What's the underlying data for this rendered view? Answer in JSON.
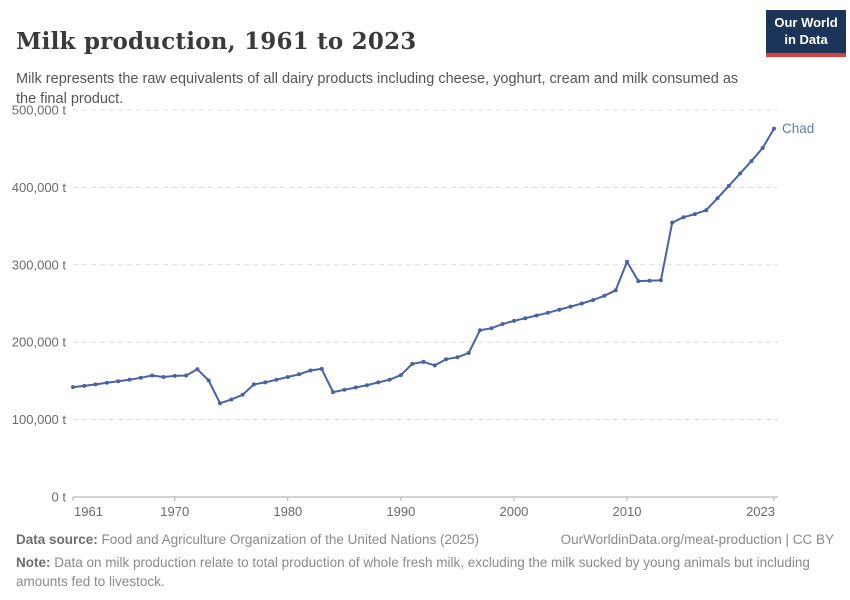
{
  "header": {
    "title": "Milk production, 1961 to 2023",
    "subtitle": "Milk represents the raw equivalents of all dairy products including cheese, yoghurt, cream and milk consumed as the final product.",
    "logo": {
      "line1": "Our World",
      "line2": "in Data"
    }
  },
  "chart_data": {
    "type": "line",
    "title": "Milk production, 1961 to 2023",
    "unit": "t",
    "entity_label": "Chad",
    "line_color": "#4862a4",
    "entity_label_color": "#5d7ab8",
    "grid": "horizontal dashed",
    "legend_position": "end-of-line label",
    "ylim": [
      0,
      500000
    ],
    "yticks": [
      {
        "value": 0,
        "label": "0 t"
      },
      {
        "value": 100000,
        "label": "100,000 t"
      },
      {
        "value": 200000,
        "label": "200,000 t"
      },
      {
        "value": 300000,
        "label": "300,000 t"
      },
      {
        "value": 400000,
        "label": "400,000 t"
      },
      {
        "value": 500000,
        "label": "500,000 t"
      }
    ],
    "xticks": [
      1961,
      1970,
      1980,
      1990,
      2000,
      2010,
      2023
    ],
    "x": [
      1961,
      1962,
      1963,
      1964,
      1965,
      1966,
      1967,
      1968,
      1969,
      1970,
      1971,
      1972,
      1973,
      1974,
      1975,
      1976,
      1977,
      1978,
      1979,
      1980,
      1981,
      1982,
      1983,
      1984,
      1985,
      1986,
      1987,
      1988,
      1989,
      1990,
      1991,
      1992,
      1993,
      1994,
      1995,
      1996,
      1997,
      1998,
      1999,
      2000,
      2001,
      2002,
      2003,
      2004,
      2005,
      2006,
      2007,
      2008,
      2009,
      2010,
      2011,
      2012,
      2013,
      2014,
      2015,
      2016,
      2017,
      2018,
      2019,
      2020,
      2021,
      2022,
      2023
    ],
    "series": [
      {
        "name": "Chad",
        "values": [
          142000,
          143500,
          145500,
          147500,
          149500,
          151500,
          154000,
          157000,
          155000,
          156500,
          157000,
          165000,
          150500,
          121000,
          126000,
          132000,
          145500,
          148000,
          151500,
          155000,
          158500,
          163500,
          165500,
          135500,
          138500,
          141500,
          144500,
          148000,
          151500,
          157500,
          172000,
          174500,
          170000,
          178000,
          180500,
          186000,
          215500,
          218000,
          223500,
          227500,
          231000,
          234500,
          238000,
          242000,
          246000,
          250000,
          254500,
          260000,
          267000,
          304000,
          279000,
          279500,
          280000,
          354500,
          361500,
          365500,
          370500,
          386000,
          402000,
          418000,
          434000,
          451000,
          476000
        ]
      }
    ]
  },
  "footer": {
    "source_prefix": "Data source:",
    "source_text": " Food and Agriculture Organization of the United Nations (2025)",
    "link_text": "OurWorldinData.org/meat-production | CC BY",
    "note_prefix": "Note:",
    "note_text": " Data on milk production relate to total production of whole fresh milk, excluding the milk sucked by young animals but including amounts fed to livestock."
  }
}
